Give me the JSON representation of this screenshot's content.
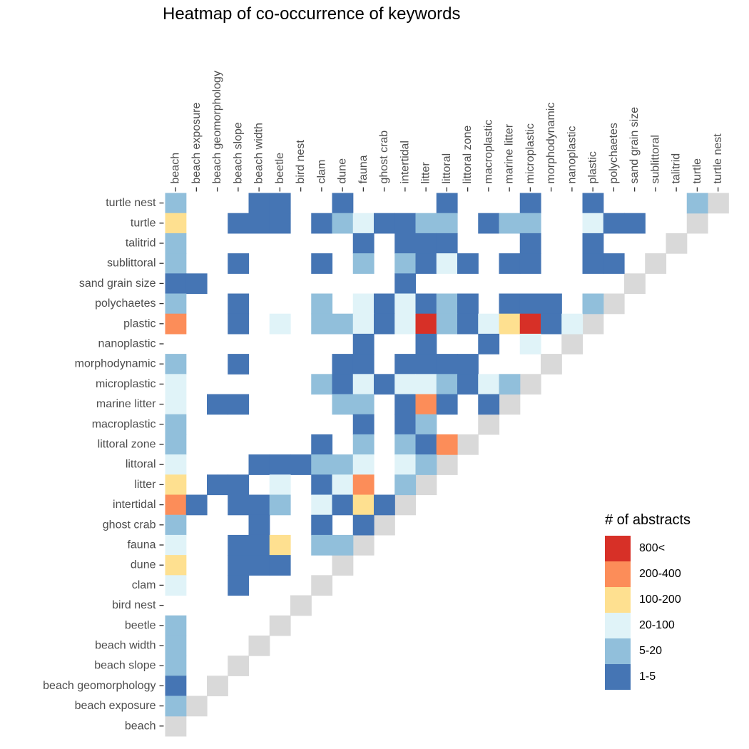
{
  "chart_data": {
    "type": "heatmap",
    "title": "Heatmap of co-occurrence of keywords",
    "keywords": [
      "beach",
      "beach exposure",
      "beach geomorphology",
      "beach slope",
      "beach width",
      "beetle",
      "bird nest",
      "clam",
      "dune",
      "fauna",
      "ghost crab",
      "intertidal",
      "litter",
      "littoral",
      "littoral zone",
      "macroplastic",
      "marine litter",
      "microplastic",
      "morphodynamic",
      "nanoplastic",
      "plastic",
      "polychaetes",
      "sand grain size",
      "sublittoral",
      "talitrid",
      "turtle",
      "turtle nest"
    ],
    "legend": {
      "title": "# of abstracts",
      "bins": [
        "800<",
        "200-400",
        "100-200",
        "20-100",
        "5-20",
        "1-5"
      ],
      "colors": {
        "800<": "#d73027",
        "200-400": "#fc8d59",
        "100-200": "#fee090",
        "20-100": "#e0f3f8",
        "5-20": "#91bfdb",
        "1-5": "#4575b4"
      }
    },
    "diagonal_color": "#d9d9d9",
    "rows": [
      {
        "keyword": "turtle nest",
        "cells": [
          [
            0,
            "5-20"
          ],
          [
            4,
            "1-5"
          ],
          [
            5,
            "1-5"
          ],
          [
            8,
            "1-5"
          ],
          [
            13,
            "1-5"
          ],
          [
            17,
            "1-5"
          ],
          [
            20,
            "1-5"
          ],
          [
            25,
            "5-20"
          ]
        ]
      },
      {
        "keyword": "turtle",
        "cells": [
          [
            0,
            "100-200"
          ],
          [
            3,
            "1-5"
          ],
          [
            4,
            "1-5"
          ],
          [
            5,
            "1-5"
          ],
          [
            7,
            "1-5"
          ],
          [
            8,
            "5-20"
          ],
          [
            9,
            "20-100"
          ],
          [
            10,
            "1-5"
          ],
          [
            11,
            "1-5"
          ],
          [
            12,
            "5-20"
          ],
          [
            13,
            "5-20"
          ],
          [
            15,
            "1-5"
          ],
          [
            16,
            "5-20"
          ],
          [
            17,
            "5-20"
          ],
          [
            20,
            "20-100"
          ],
          [
            21,
            "1-5"
          ],
          [
            22,
            "1-5"
          ]
        ]
      },
      {
        "keyword": "talitrid",
        "cells": [
          [
            0,
            "5-20"
          ],
          [
            9,
            "1-5"
          ],
          [
            11,
            "1-5"
          ],
          [
            12,
            "1-5"
          ],
          [
            13,
            "1-5"
          ],
          [
            17,
            "1-5"
          ],
          [
            20,
            "1-5"
          ]
        ]
      },
      {
        "keyword": "sublittoral",
        "cells": [
          [
            0,
            "5-20"
          ],
          [
            3,
            "1-5"
          ],
          [
            7,
            "1-5"
          ],
          [
            9,
            "5-20"
          ],
          [
            11,
            "5-20"
          ],
          [
            12,
            "1-5"
          ],
          [
            13,
            "20-100"
          ],
          [
            14,
            "1-5"
          ],
          [
            16,
            "1-5"
          ],
          [
            17,
            "1-5"
          ],
          [
            20,
            "1-5"
          ],
          [
            21,
            "1-5"
          ]
        ]
      },
      {
        "keyword": "sand grain size",
        "cells": [
          [
            0,
            "1-5"
          ],
          [
            1,
            "1-5"
          ],
          [
            11,
            "1-5"
          ]
        ]
      },
      {
        "keyword": "polychaetes",
        "cells": [
          [
            0,
            "5-20"
          ],
          [
            3,
            "1-5"
          ],
          [
            7,
            "5-20"
          ],
          [
            9,
            "20-100"
          ],
          [
            10,
            "1-5"
          ],
          [
            11,
            "20-100"
          ],
          [
            12,
            "1-5"
          ],
          [
            13,
            "5-20"
          ],
          [
            14,
            "1-5"
          ],
          [
            16,
            "1-5"
          ],
          [
            17,
            "1-5"
          ],
          [
            18,
            "1-5"
          ],
          [
            20,
            "5-20"
          ]
        ]
      },
      {
        "keyword": "plastic",
        "cells": [
          [
            0,
            "200-400"
          ],
          [
            3,
            "1-5"
          ],
          [
            5,
            "20-100"
          ],
          [
            7,
            "5-20"
          ],
          [
            8,
            "5-20"
          ],
          [
            9,
            "20-100"
          ],
          [
            10,
            "1-5"
          ],
          [
            11,
            "20-100"
          ],
          [
            12,
            "800<"
          ],
          [
            13,
            "5-20"
          ],
          [
            14,
            "1-5"
          ],
          [
            15,
            "20-100"
          ],
          [
            16,
            "100-200"
          ],
          [
            17,
            "800<"
          ],
          [
            18,
            "1-5"
          ],
          [
            19,
            "20-100"
          ]
        ]
      },
      {
        "keyword": "nanoplastic",
        "cells": [
          [
            9,
            "1-5"
          ],
          [
            12,
            "1-5"
          ],
          [
            15,
            "1-5"
          ],
          [
            17,
            "20-100"
          ]
        ]
      },
      {
        "keyword": "morphodynamic",
        "cells": [
          [
            0,
            "5-20"
          ],
          [
            3,
            "1-5"
          ],
          [
            8,
            "1-5"
          ],
          [
            9,
            "1-5"
          ],
          [
            11,
            "1-5"
          ],
          [
            12,
            "1-5"
          ],
          [
            13,
            "1-5"
          ],
          [
            14,
            "1-5"
          ]
        ]
      },
      {
        "keyword": "microplastic",
        "cells": [
          [
            0,
            "20-100"
          ],
          [
            7,
            "5-20"
          ],
          [
            8,
            "1-5"
          ],
          [
            9,
            "20-100"
          ],
          [
            10,
            "1-5"
          ],
          [
            11,
            "20-100"
          ],
          [
            12,
            "20-100"
          ],
          [
            13,
            "5-20"
          ],
          [
            14,
            "1-5"
          ],
          [
            15,
            "20-100"
          ],
          [
            16,
            "5-20"
          ]
        ]
      },
      {
        "keyword": "marine litter",
        "cells": [
          [
            0,
            "20-100"
          ],
          [
            2,
            "1-5"
          ],
          [
            3,
            "1-5"
          ],
          [
            8,
            "5-20"
          ],
          [
            9,
            "5-20"
          ],
          [
            11,
            "1-5"
          ],
          [
            12,
            "200-400"
          ],
          [
            13,
            "1-5"
          ],
          [
            15,
            "1-5"
          ]
        ]
      },
      {
        "keyword": "macroplastic",
        "cells": [
          [
            0,
            "5-20"
          ],
          [
            9,
            "1-5"
          ],
          [
            11,
            "1-5"
          ],
          [
            12,
            "5-20"
          ]
        ]
      },
      {
        "keyword": "littoral zone",
        "cells": [
          [
            0,
            "5-20"
          ],
          [
            7,
            "1-5"
          ],
          [
            9,
            "5-20"
          ],
          [
            11,
            "5-20"
          ],
          [
            12,
            "1-5"
          ],
          [
            13,
            "200-400"
          ]
        ]
      },
      {
        "keyword": "littoral",
        "cells": [
          [
            0,
            "20-100"
          ],
          [
            4,
            "1-5"
          ],
          [
            5,
            "1-5"
          ],
          [
            6,
            "1-5"
          ],
          [
            7,
            "5-20"
          ],
          [
            8,
            "5-20"
          ],
          [
            9,
            "20-100"
          ],
          [
            11,
            "20-100"
          ],
          [
            12,
            "5-20"
          ]
        ]
      },
      {
        "keyword": "litter",
        "cells": [
          [
            0,
            "100-200"
          ],
          [
            2,
            "1-5"
          ],
          [
            3,
            "1-5"
          ],
          [
            5,
            "20-100"
          ],
          [
            7,
            "1-5"
          ],
          [
            8,
            "20-100"
          ],
          [
            9,
            "200-400"
          ],
          [
            11,
            "5-20"
          ]
        ]
      },
      {
        "keyword": "intertidal",
        "cells": [
          [
            0,
            "200-400"
          ],
          [
            1,
            "1-5"
          ],
          [
            3,
            "1-5"
          ],
          [
            4,
            "1-5"
          ],
          [
            5,
            "5-20"
          ],
          [
            7,
            "20-100"
          ],
          [
            8,
            "1-5"
          ],
          [
            9,
            "100-200"
          ],
          [
            10,
            "1-5"
          ]
        ]
      },
      {
        "keyword": "ghost crab",
        "cells": [
          [
            0,
            "5-20"
          ],
          [
            4,
            "1-5"
          ],
          [
            7,
            "1-5"
          ],
          [
            9,
            "1-5"
          ]
        ]
      },
      {
        "keyword": "fauna",
        "cells": [
          [
            0,
            "20-100"
          ],
          [
            3,
            "1-5"
          ],
          [
            4,
            "1-5"
          ],
          [
            5,
            "100-200"
          ],
          [
            7,
            "5-20"
          ],
          [
            8,
            "5-20"
          ]
        ]
      },
      {
        "keyword": "dune",
        "cells": [
          [
            0,
            "100-200"
          ],
          [
            3,
            "1-5"
          ],
          [
            4,
            "1-5"
          ],
          [
            5,
            "1-5"
          ]
        ]
      },
      {
        "keyword": "clam",
        "cells": [
          [
            0,
            "20-100"
          ],
          [
            3,
            "1-5"
          ]
        ]
      },
      {
        "keyword": "bird nest",
        "cells": []
      },
      {
        "keyword": "beetle",
        "cells": [
          [
            0,
            "5-20"
          ]
        ]
      },
      {
        "keyword": "beach width",
        "cells": [
          [
            0,
            "5-20"
          ]
        ]
      },
      {
        "keyword": "beach slope",
        "cells": [
          [
            0,
            "5-20"
          ]
        ]
      },
      {
        "keyword": "beach geomorphology",
        "cells": [
          [
            0,
            "1-5"
          ]
        ]
      },
      {
        "keyword": "beach exposure",
        "cells": [
          [
            0,
            "5-20"
          ]
        ]
      },
      {
        "keyword": "beach",
        "cells": []
      }
    ]
  }
}
